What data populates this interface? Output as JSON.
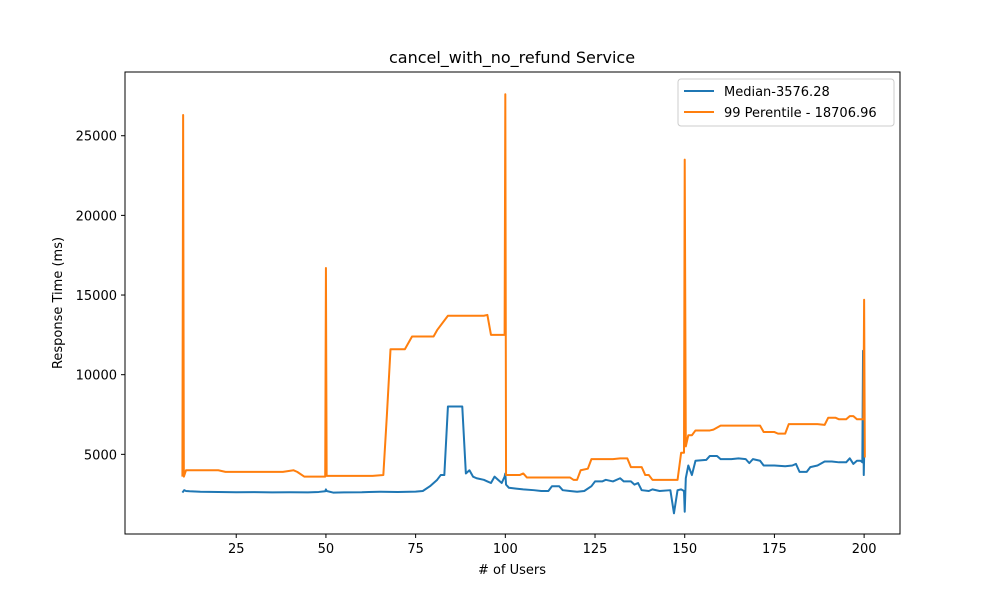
{
  "chart_data": {
    "type": "line",
    "title": "cancel_with_no_refund Service",
    "xlabel": "# of Users",
    "ylabel": "Response Time (ms)",
    "xlim": [
      -6,
      210
    ],
    "ylim": [
      0,
      29000
    ],
    "xticks": [
      50,
      75,
      100,
      125,
      150,
      175,
      200,
      25
    ],
    "xtick_labels": [
      "50",
      "75",
      "100",
      "125",
      "150",
      "175",
      "200",
      "25"
    ],
    "yticks": [
      5000,
      10000,
      15000,
      20000,
      25000
    ],
    "ytick_labels": [
      "5000",
      "10000",
      "15000",
      "20000",
      "25000"
    ],
    "grid": false,
    "legend_position": "top-right",
    "series": [
      {
        "name": "Median-3576.28",
        "color": "#1f77b4",
        "points": [
          [
            10,
            2600
          ],
          [
            10.5,
            2750
          ],
          [
            11,
            2700
          ],
          [
            12,
            2680
          ],
          [
            15,
            2650
          ],
          [
            20,
            2640
          ],
          [
            25,
            2620
          ],
          [
            30,
            2630
          ],
          [
            35,
            2610
          ],
          [
            40,
            2620
          ],
          [
            45,
            2610
          ],
          [
            48,
            2640
          ],
          [
            49.8,
            2680
          ],
          [
            50,
            2800
          ],
          [
            50.2,
            2700
          ],
          [
            52,
            2600
          ],
          [
            55,
            2610
          ],
          [
            60,
            2620
          ],
          [
            62,
            2640
          ],
          [
            65,
            2650
          ],
          [
            70,
            2640
          ],
          [
            75,
            2660
          ],
          [
            77,
            2700
          ],
          [
            79,
            3000
          ],
          [
            81,
            3400
          ],
          [
            82,
            3700
          ],
          [
            83,
            3700
          ],
          [
            84,
            8000
          ],
          [
            86,
            8000
          ],
          [
            88,
            8000
          ],
          [
            89,
            3800
          ],
          [
            90,
            4000
          ],
          [
            91,
            3600
          ],
          [
            92,
            3500
          ],
          [
            94,
            3400
          ],
          [
            95,
            3300
          ],
          [
            96,
            3200
          ],
          [
            97,
            3600
          ],
          [
            98,
            3400
          ],
          [
            99,
            3200
          ],
          [
            99.8,
            3600
          ],
          [
            100,
            3800
          ],
          [
            100.2,
            3100
          ],
          [
            101,
            2900
          ],
          [
            103,
            2850
          ],
          [
            105,
            2800
          ],
          [
            108,
            2750
          ],
          [
            110,
            2700
          ],
          [
            112,
            2700
          ],
          [
            113,
            3000
          ],
          [
            115,
            3000
          ],
          [
            116,
            2750
          ],
          [
            118,
            2700
          ],
          [
            120,
            2650
          ],
          [
            122,
            2700
          ],
          [
            124,
            3000
          ],
          [
            125,
            3300
          ],
          [
            127,
            3300
          ],
          [
            128,
            3400
          ],
          [
            130,
            3300
          ],
          [
            132,
            3500
          ],
          [
            133,
            3300
          ],
          [
            135,
            3300
          ],
          [
            136,
            3100
          ],
          [
            137,
            3200
          ],
          [
            138,
            2750
          ],
          [
            140,
            2700
          ],
          [
            141,
            2800
          ],
          [
            143,
            2700
          ],
          [
            146,
            2750
          ],
          [
            147,
            1300
          ],
          [
            148,
            2750
          ],
          [
            149,
            2800
          ],
          [
            149.8,
            2700
          ],
          [
            150,
            1400
          ],
          [
            150.3,
            3500
          ],
          [
            151,
            4300
          ],
          [
            152,
            3700
          ],
          [
            153,
            4600
          ],
          [
            156,
            4650
          ],
          [
            157,
            4900
          ],
          [
            159,
            4900
          ],
          [
            160,
            4700
          ],
          [
            163,
            4700
          ],
          [
            165,
            4750
          ],
          [
            167,
            4700
          ],
          [
            168,
            4450
          ],
          [
            169,
            4700
          ],
          [
            171,
            4600
          ],
          [
            172,
            4300
          ],
          [
            175,
            4300
          ],
          [
            178,
            4250
          ],
          [
            180,
            4300
          ],
          [
            181,
            4400
          ],
          [
            182,
            3900
          ],
          [
            184,
            3900
          ],
          [
            185,
            4200
          ],
          [
            187,
            4300
          ],
          [
            189,
            4550
          ],
          [
            191,
            4550
          ],
          [
            193,
            4500
          ],
          [
            195,
            4500
          ],
          [
            196,
            4750
          ],
          [
            197,
            4400
          ],
          [
            198,
            4600
          ],
          [
            199,
            4600
          ],
          [
            199.5,
            4500
          ],
          [
            199.7,
            11500
          ],
          [
            199.9,
            3700
          ],
          [
            200,
            4800
          ]
        ]
      },
      {
        "name": "99 Perentile - 18706.96",
        "color": "#ff7f0e",
        "points": [
          [
            10,
            3600
          ],
          [
            10.2,
            26300
          ],
          [
            10.4,
            3600
          ],
          [
            11,
            4000
          ],
          [
            15,
            4000
          ],
          [
            20,
            4000
          ],
          [
            22,
            3900
          ],
          [
            25,
            3900
          ],
          [
            30,
            3900
          ],
          [
            35,
            3900
          ],
          [
            38,
            3900
          ],
          [
            41,
            4000
          ],
          [
            42,
            3900
          ],
          [
            44,
            3600
          ],
          [
            47,
            3600
          ],
          [
            49.8,
            3600
          ],
          [
            50,
            16700
          ],
          [
            50.2,
            3650
          ],
          [
            55,
            3650
          ],
          [
            60,
            3650
          ],
          [
            63,
            3650
          ],
          [
            66,
            3700
          ],
          [
            67,
            7500
          ],
          [
            68,
            11600
          ],
          [
            70,
            11600
          ],
          [
            72,
            11600
          ],
          [
            74,
            12400
          ],
          [
            78,
            12400
          ],
          [
            80,
            12400
          ],
          [
            81,
            12800
          ],
          [
            84,
            13700
          ],
          [
            87,
            13700
          ],
          [
            90,
            13700
          ],
          [
            94,
            13700
          ],
          [
            95,
            13750
          ],
          [
            96,
            12500
          ],
          [
            98,
            12500
          ],
          [
            99.8,
            12500
          ],
          [
            100,
            27600
          ],
          [
            100.2,
            3700
          ],
          [
            101,
            3700
          ],
          [
            104,
            3700
          ],
          [
            105,
            3800
          ],
          [
            106,
            3550
          ],
          [
            110,
            3550
          ],
          [
            115,
            3550
          ],
          [
            118,
            3550
          ],
          [
            119,
            3400
          ],
          [
            120,
            3400
          ],
          [
            121,
            4000
          ],
          [
            123,
            4100
          ],
          [
            124,
            4700
          ],
          [
            127,
            4700
          ],
          [
            130,
            4700
          ],
          [
            132,
            4750
          ],
          [
            134,
            4750
          ],
          [
            135,
            4200
          ],
          [
            137,
            4200
          ],
          [
            138,
            4200
          ],
          [
            139,
            3700
          ],
          [
            140,
            3700
          ],
          [
            141,
            3400
          ],
          [
            145,
            3400
          ],
          [
            147,
            3400
          ],
          [
            148,
            3400
          ],
          [
            149,
            5100
          ],
          [
            149.8,
            5100
          ],
          [
            150,
            23500
          ],
          [
            150.3,
            5500
          ],
          [
            151,
            6200
          ],
          [
            152,
            6200
          ],
          [
            153,
            6500
          ],
          [
            155,
            6500
          ],
          [
            157,
            6500
          ],
          [
            158,
            6550
          ],
          [
            160,
            6800
          ],
          [
            163,
            6800
          ],
          [
            165,
            6800
          ],
          [
            170,
            6800
          ],
          [
            171,
            6800
          ],
          [
            172,
            6400
          ],
          [
            175,
            6400
          ],
          [
            176,
            6300
          ],
          [
            178,
            6300
          ],
          [
            179,
            6900
          ],
          [
            183,
            6900
          ],
          [
            187,
            6900
          ],
          [
            189,
            6850
          ],
          [
            190,
            7300
          ],
          [
            192,
            7300
          ],
          [
            193,
            7200
          ],
          [
            195,
            7200
          ],
          [
            196,
            7400
          ],
          [
            197,
            7400
          ],
          [
            198,
            7200
          ],
          [
            199.8,
            7200
          ],
          [
            200,
            14700
          ],
          [
            200.2,
            4800
          ]
        ]
      }
    ]
  }
}
